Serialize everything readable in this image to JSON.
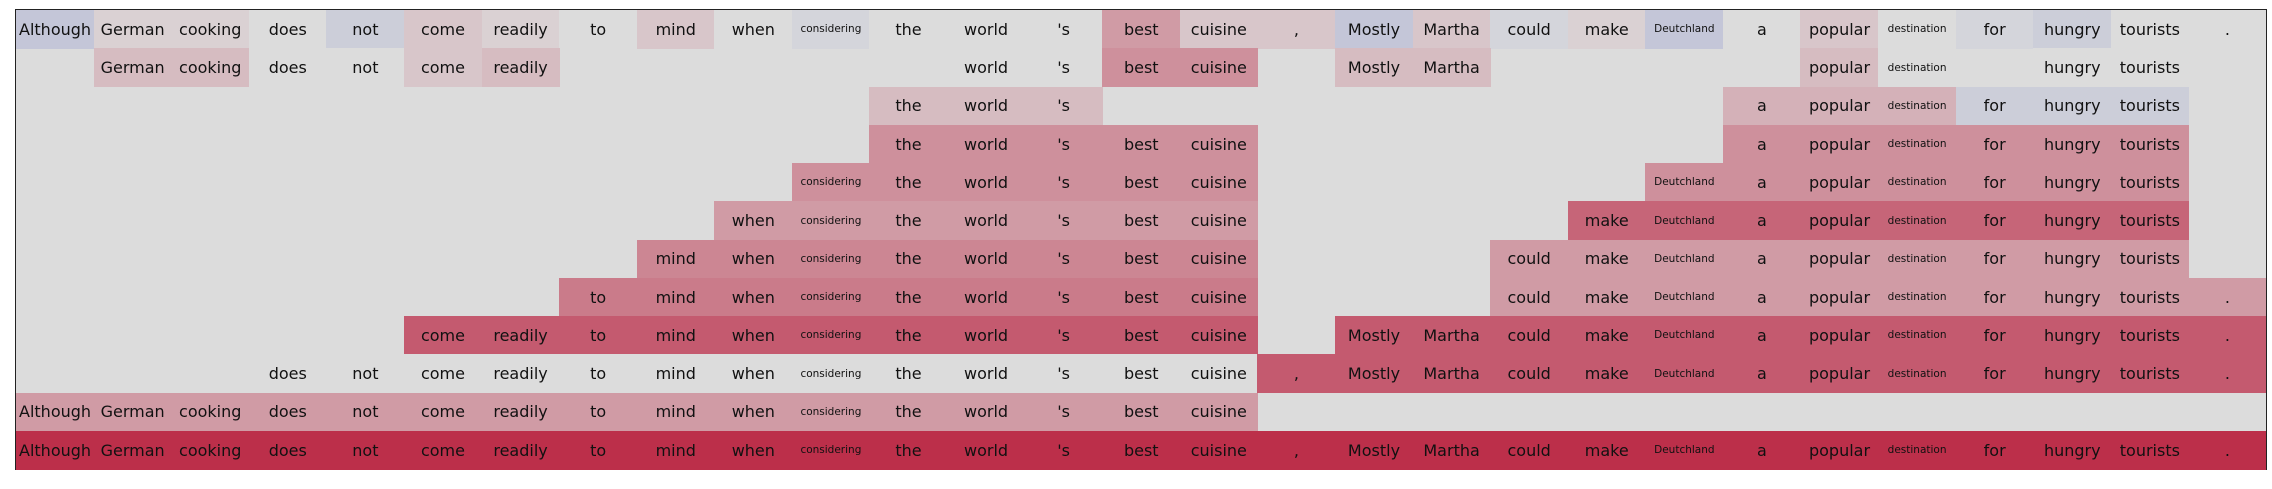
{
  "chart_data": {
    "type": "heatmap",
    "tokens": [
      "Although",
      "German",
      "cooking",
      "does",
      "not",
      "come",
      "readily",
      "to",
      "mind",
      "when",
      "considering",
      "the",
      "world",
      "'s",
      "best",
      "cuisine",
      ",",
      "Mostly",
      "Martha",
      "could",
      "make",
      "Deutchland",
      "a",
      "popular",
      "destination",
      "for",
      "hungry",
      "tourists",
      "."
    ],
    "small_tokens": [
      "considering",
      "Deutchland",
      "destination"
    ],
    "value_range": [
      -1,
      1
    ],
    "colors": {
      "negative": "#3b4cc0",
      "neutral": "#dcdcdc",
      "positive": "#b40426"
    },
    "rows": [
      [
        -0.15,
        0.05,
        0.05,
        0.0,
        -0.1,
        0.1,
        0.05,
        0.0,
        0.1,
        0.0,
        -0.05,
        0.0,
        0.0,
        0.0,
        0.3,
        0.1,
        0.1,
        -0.15,
        0.1,
        -0.05,
        0.05,
        -0.15,
        0.0,
        0.1,
        0.0,
        -0.05,
        -0.1,
        0.0,
        0.0
      ],
      [
        null,
        0.15,
        0.15,
        0.0,
        0.0,
        0.1,
        0.15,
        null,
        null,
        null,
        null,
        null,
        0.0,
        0.0,
        0.35,
        0.35,
        null,
        0.15,
        0.15,
        null,
        null,
        null,
        null,
        0.15,
        0.0,
        null,
        0.0,
        0.0,
        null
      ],
      [
        null,
        null,
        null,
        null,
        null,
        null,
        null,
        null,
        null,
        null,
        null,
        0.15,
        0.15,
        0.15,
        null,
        null,
        null,
        null,
        null,
        null,
        null,
        null,
        0.2,
        0.2,
        0.2,
        -0.1,
        -0.1,
        -0.1,
        null
      ],
      [
        null,
        null,
        null,
        null,
        null,
        null,
        null,
        null,
        null,
        null,
        null,
        0.35,
        0.35,
        0.35,
        0.35,
        0.35,
        null,
        null,
        null,
        null,
        null,
        null,
        0.35,
        0.35,
        0.35,
        0.35,
        0.35,
        0.35,
        null
      ],
      [
        null,
        null,
        null,
        null,
        null,
        null,
        null,
        null,
        null,
        null,
        0.35,
        0.35,
        0.35,
        0.35,
        0.35,
        0.35,
        null,
        null,
        null,
        null,
        null,
        0.35,
        0.35,
        0.35,
        0.35,
        0.35,
        0.35,
        0.35,
        null
      ],
      [
        null,
        null,
        null,
        null,
        null,
        null,
        null,
        null,
        null,
        0.3,
        0.3,
        0.3,
        0.3,
        0.3,
        0.3,
        0.3,
        null,
        null,
        null,
        null,
        0.55,
        0.55,
        0.55,
        0.55,
        0.55,
        0.55,
        0.55,
        0.55,
        null
      ],
      [
        null,
        null,
        null,
        null,
        null,
        null,
        null,
        null,
        0.4,
        0.4,
        0.4,
        0.4,
        0.4,
        0.4,
        0.4,
        0.4,
        null,
        null,
        null,
        0.3,
        0.3,
        0.3,
        0.3,
        0.3,
        0.3,
        0.3,
        0.3,
        0.3,
        null
      ],
      [
        null,
        null,
        null,
        null,
        null,
        null,
        null,
        0.45,
        0.45,
        0.45,
        0.45,
        0.45,
        0.45,
        0.45,
        0.45,
        0.45,
        null,
        null,
        null,
        0.3,
        0.3,
        0.3,
        0.3,
        0.3,
        0.3,
        0.3,
        0.3,
        0.3,
        0.3
      ],
      [
        null,
        null,
        null,
        null,
        null,
        0.6,
        0.6,
        0.6,
        0.6,
        0.6,
        0.6,
        0.6,
        0.6,
        0.6,
        0.6,
        0.6,
        null,
        0.6,
        0.6,
        0.6,
        0.6,
        0.6,
        0.6,
        0.6,
        0.6,
        0.6,
        0.6,
        0.6,
        0.6
      ],
      [
        null,
        null,
        null,
        0.0,
        0.0,
        0.0,
        0.0,
        0.0,
        0.0,
        0.0,
        0.0,
        0.0,
        0.0,
        0.0,
        0.0,
        0.0,
        0.6,
        0.6,
        0.6,
        0.6,
        0.6,
        0.6,
        0.6,
        0.6,
        0.6,
        0.6,
        0.6,
        0.6,
        0.6
      ],
      [
        0.3,
        0.3,
        0.3,
        0.3,
        0.3,
        0.3,
        0.3,
        0.3,
        0.3,
        0.3,
        0.3,
        0.3,
        0.3,
        0.3,
        0.3,
        0.3,
        null,
        null,
        null,
        null,
        null,
        null,
        null,
        null,
        null,
        null,
        null,
        null,
        null
      ],
      [
        0.8,
        0.8,
        0.8,
        0.8,
        0.8,
        0.8,
        0.8,
        0.8,
        0.8,
        0.8,
        0.8,
        0.8,
        0.8,
        0.8,
        0.8,
        0.8,
        0.8,
        0.8,
        0.8,
        0.8,
        0.8,
        0.8,
        0.8,
        0.8,
        0.8,
        0.8,
        0.8,
        0.8,
        0.8
      ]
    ]
  }
}
